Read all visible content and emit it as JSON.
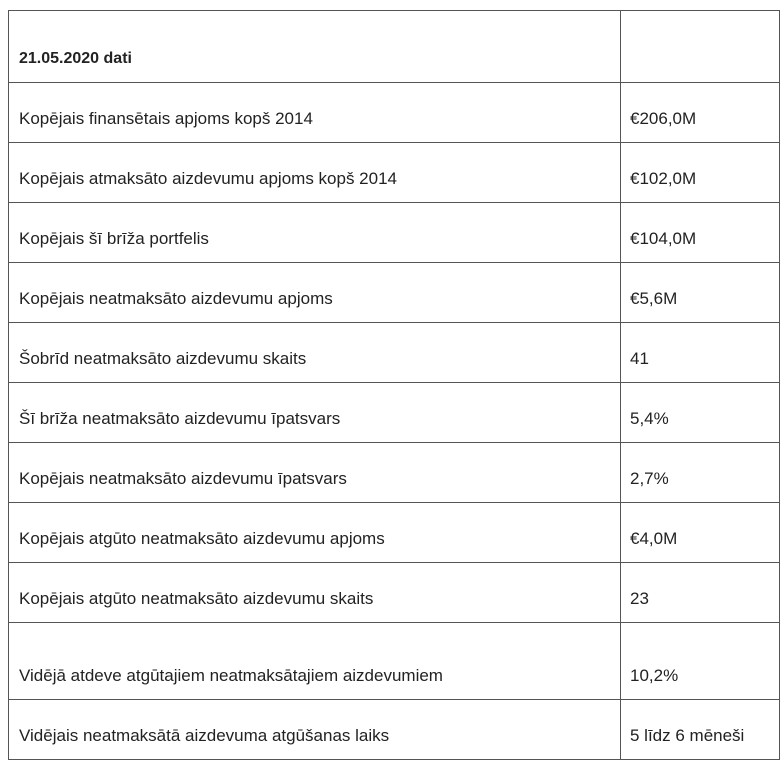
{
  "table": {
    "header": {
      "label": "21.05.2020 dati",
      "value": ""
    },
    "rows": [
      {
        "label": "Kopējais finansētais apjoms kopš  2014",
        "value": "€206,0M"
      },
      {
        "label": "Kopējais atmaksāto aizdevumu apjoms kopš 2014",
        "value": "€102,0M"
      },
      {
        "label": "Kopējais šī brīža portfelis",
        "value": "€104,0M"
      },
      {
        "label": "Kopējais neatmaksāto aizdevumu apjoms",
        "value": "€5,6M"
      },
      {
        "label": "Šobrīd neatmaksāto aizdevumu skaits",
        "value": "41"
      },
      {
        "label": "Šī brīža neatmaksāto aizdevumu īpatsvars",
        "value": "5,4%"
      },
      {
        "label": "Kopējais neatmaksāto aizdevumu īpatsvars",
        "value": "2,7%"
      },
      {
        "label": "Kopējais atgūto neatmaksāto aizdevumu apjoms",
        "value": "€4,0M"
      },
      {
        "label": "Kopējais atgūto neatmaksāto aizdevumu skaits",
        "value": "23"
      },
      {
        "label": "Vidējā atdeve atgūtajiem neatmaksātajiem aizdevumiem",
        "value": "10,2%"
      },
      {
        "label": "Vidējais neatmaksātā aizdevuma atgūšanas laiks",
        "value": "5 līdz 6 mēneši"
      }
    ]
  }
}
